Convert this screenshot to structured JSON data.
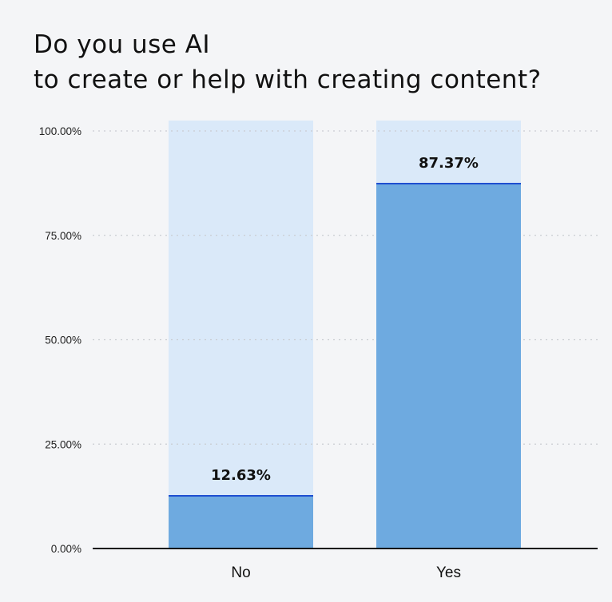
{
  "chart_data": {
    "type": "bar",
    "title": "Do you use AI\nto create or help with creating content?",
    "title_lines": [
      "Do you use AI",
      "to create or help with creating content?"
    ],
    "categories": [
      "No",
      "Yes"
    ],
    "values": [
      12.63,
      87.37
    ],
    "value_labels": [
      "12.63%",
      "87.37%"
    ],
    "yticks": [
      "0.00%",
      "25.00%",
      "50.00%",
      "75.00%",
      "100.00%"
    ],
    "ylim": [
      0,
      100
    ],
    "grid": true,
    "colors": {
      "bar": "#6eaae0",
      "bar_background": "#dae9f9",
      "bar_top_line": "#1f4fd1",
      "grid": "#c9ccd1",
      "axis": "#111111"
    }
  }
}
